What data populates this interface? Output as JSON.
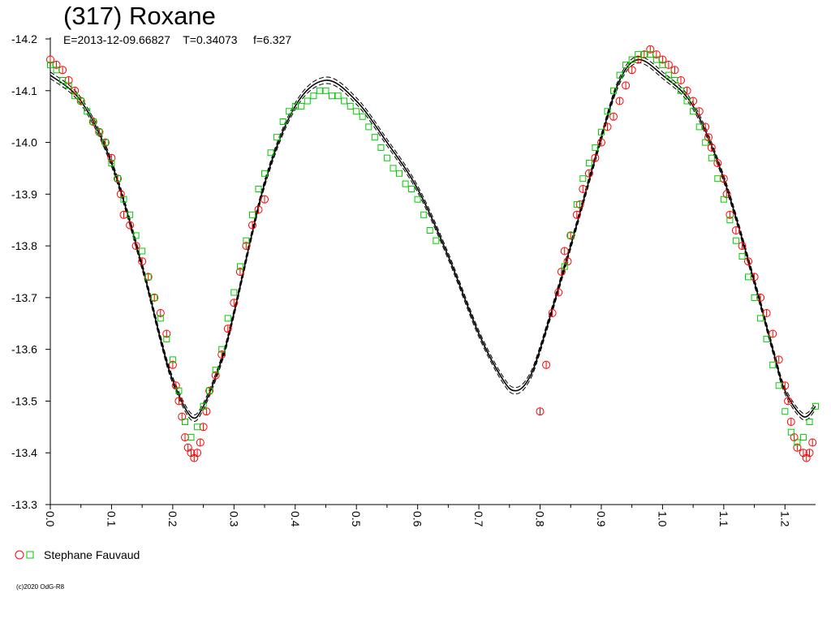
{
  "page": {
    "title": "(317) Roxane",
    "subtitle": "E=2013-12-09.66827    T=0.34073     f=6.327",
    "copyright": "(c)2020 OdG-R8"
  },
  "legend": {
    "label": "Stephane Fauvaud",
    "marker_colors": [
      "#ff0000",
      "#00cc00"
    ]
  },
  "chart_data": {
    "type": "scatter",
    "title": "(317) Roxane",
    "xlim": [
      0.0,
      1.25
    ],
    "ylim": [
      -14.2,
      -13.3
    ],
    "y_inverted": true,
    "x_ticks": [
      "0.0",
      "0.1",
      "0.2",
      "0.3",
      "0.4",
      "0.5",
      "0.6",
      "0.7",
      "0.8",
      "0.9",
      "1.0",
      "1.1",
      "1.2"
    ],
    "y_ticks": [
      "-14.2",
      "-14.1",
      "-14.0",
      "-13.9",
      "-13.8",
      "-13.7",
      "-13.6",
      "-13.5",
      "-13.4",
      "-13.3"
    ],
    "legend_position": "bottom-left",
    "series": [
      {
        "name": "Stephane Fauvaud",
        "marker": "circle",
        "color": "#ff0000",
        "points": [
          [
            0.0,
            -14.16
          ],
          [
            0.01,
            -14.15
          ],
          [
            0.02,
            -14.14
          ],
          [
            0.03,
            -14.12
          ],
          [
            0.04,
            -14.1
          ],
          [
            0.05,
            -14.08
          ],
          [
            0.07,
            -14.04
          ],
          [
            0.08,
            -14.02
          ],
          [
            0.09,
            -14.0
          ],
          [
            0.1,
            -13.97
          ],
          [
            0.11,
            -13.93
          ],
          [
            0.115,
            -13.9
          ],
          [
            0.12,
            -13.86
          ],
          [
            0.13,
            -13.84
          ],
          [
            0.14,
            -13.8
          ],
          [
            0.15,
            -13.77
          ],
          [
            0.16,
            -13.74
          ],
          [
            0.17,
            -13.7
          ],
          [
            0.18,
            -13.67
          ],
          [
            0.19,
            -13.63
          ],
          [
            0.2,
            -13.57
          ],
          [
            0.205,
            -13.53
          ],
          [
            0.21,
            -13.5
          ],
          [
            0.215,
            -13.47
          ],
          [
            0.22,
            -13.43
          ],
          [
            0.225,
            -13.41
          ],
          [
            0.23,
            -13.4
          ],
          [
            0.235,
            -13.39
          ],
          [
            0.24,
            -13.4
          ],
          [
            0.245,
            -13.42
          ],
          [
            0.25,
            -13.45
          ],
          [
            0.255,
            -13.48
          ],
          [
            0.26,
            -13.52
          ],
          [
            0.27,
            -13.55
          ],
          [
            0.28,
            -13.59
          ],
          [
            0.29,
            -13.64
          ],
          [
            0.3,
            -13.69
          ],
          [
            0.31,
            -13.75
          ],
          [
            0.32,
            -13.8
          ],
          [
            0.33,
            -13.84
          ],
          [
            0.34,
            -13.87
          ],
          [
            0.35,
            -13.89
          ],
          [
            0.8,
            -13.48
          ],
          [
            0.81,
            -13.57
          ],
          [
            0.82,
            -13.67
          ],
          [
            0.83,
            -13.71
          ],
          [
            0.835,
            -13.75
          ],
          [
            0.84,
            -13.79
          ],
          [
            0.845,
            -13.77
          ],
          [
            0.85,
            -13.82
          ],
          [
            0.86,
            -13.86
          ],
          [
            0.865,
            -13.88
          ],
          [
            0.87,
            -13.91
          ],
          [
            0.88,
            -13.94
          ],
          [
            0.89,
            -13.97
          ],
          [
            0.9,
            -14.0
          ],
          [
            0.91,
            -14.03
          ],
          [
            0.92,
            -14.05
          ],
          [
            0.93,
            -14.08
          ],
          [
            0.94,
            -14.11
          ],
          [
            0.95,
            -14.14
          ],
          [
            0.96,
            -14.16
          ],
          [
            0.97,
            -14.17
          ],
          [
            0.98,
            -14.18
          ],
          [
            0.99,
            -14.17
          ],
          [
            1.0,
            -14.16
          ],
          [
            1.01,
            -14.15
          ],
          [
            1.02,
            -14.14
          ],
          [
            1.03,
            -14.12
          ],
          [
            1.04,
            -14.1
          ],
          [
            1.05,
            -14.08
          ],
          [
            1.06,
            -14.06
          ],
          [
            1.07,
            -14.03
          ],
          [
            1.075,
            -14.01
          ],
          [
            1.08,
            -13.99
          ],
          [
            1.09,
            -13.96
          ],
          [
            1.1,
            -13.93
          ],
          [
            1.105,
            -13.9
          ],
          [
            1.11,
            -13.86
          ],
          [
            1.12,
            -13.83
          ],
          [
            1.13,
            -13.8
          ],
          [
            1.14,
            -13.77
          ],
          [
            1.15,
            -13.74
          ],
          [
            1.16,
            -13.7
          ],
          [
            1.17,
            -13.67
          ],
          [
            1.18,
            -13.63
          ],
          [
            1.19,
            -13.58
          ],
          [
            1.2,
            -13.53
          ],
          [
            1.205,
            -13.5
          ],
          [
            1.21,
            -13.46
          ],
          [
            1.215,
            -13.43
          ],
          [
            1.22,
            -13.41
          ],
          [
            1.23,
            -13.4
          ],
          [
            1.235,
            -13.39
          ],
          [
            1.24,
            -13.4
          ],
          [
            1.245,
            -13.42
          ]
        ]
      },
      {
        "name": "Stephane Fauvaud",
        "marker": "square",
        "color": "#00cc00",
        "points": [
          [
            0.0,
            -14.15
          ],
          [
            0.01,
            -14.14
          ],
          [
            0.02,
            -14.12
          ],
          [
            0.03,
            -14.11
          ],
          [
            0.04,
            -14.09
          ],
          [
            0.05,
            -14.08
          ],
          [
            0.06,
            -14.06
          ],
          [
            0.07,
            -14.04
          ],
          [
            0.08,
            -14.02
          ],
          [
            0.09,
            -14.0
          ],
          [
            0.1,
            -13.96
          ],
          [
            0.11,
            -13.93
          ],
          [
            0.12,
            -13.89
          ],
          [
            0.13,
            -13.86
          ],
          [
            0.14,
            -13.82
          ],
          [
            0.15,
            -13.79
          ],
          [
            0.16,
            -13.74
          ],
          [
            0.17,
            -13.7
          ],
          [
            0.18,
            -13.66
          ],
          [
            0.19,
            -13.62
          ],
          [
            0.2,
            -13.58
          ],
          [
            0.21,
            -13.52
          ],
          [
            0.22,
            -13.46
          ],
          [
            0.23,
            -13.43
          ],
          [
            0.24,
            -13.45
          ],
          [
            0.25,
            -13.49
          ],
          [
            0.26,
            -13.52
          ],
          [
            0.27,
            -13.56
          ],
          [
            0.28,
            -13.6
          ],
          [
            0.29,
            -13.66
          ],
          [
            0.3,
            -13.71
          ],
          [
            0.31,
            -13.76
          ],
          [
            0.32,
            -13.81
          ],
          [
            0.33,
            -13.86
          ],
          [
            0.34,
            -13.91
          ],
          [
            0.35,
            -13.94
          ],
          [
            0.36,
            -13.98
          ],
          [
            0.37,
            -14.01
          ],
          [
            0.38,
            -14.04
          ],
          [
            0.39,
            -14.06
          ],
          [
            0.4,
            -14.07
          ],
          [
            0.41,
            -14.07
          ],
          [
            0.42,
            -14.08
          ],
          [
            0.43,
            -14.09
          ],
          [
            0.44,
            -14.1
          ],
          [
            0.45,
            -14.1
          ],
          [
            0.46,
            -14.09
          ],
          [
            0.47,
            -14.09
          ],
          [
            0.48,
            -14.08
          ],
          [
            0.49,
            -14.07
          ],
          [
            0.5,
            -14.06
          ],
          [
            0.51,
            -14.05
          ],
          [
            0.52,
            -14.03
          ],
          [
            0.53,
            -14.01
          ],
          [
            0.54,
            -13.99
          ],
          [
            0.55,
            -13.97
          ],
          [
            0.56,
            -13.95
          ],
          [
            0.57,
            -13.94
          ],
          [
            0.58,
            -13.92
          ],
          [
            0.59,
            -13.91
          ],
          [
            0.6,
            -13.89
          ],
          [
            0.61,
            -13.86
          ],
          [
            0.62,
            -13.83
          ],
          [
            0.63,
            -13.81
          ],
          [
            0.84,
            -13.76
          ],
          [
            0.85,
            -13.82
          ],
          [
            0.86,
            -13.88
          ],
          [
            0.87,
            -13.93
          ],
          [
            0.88,
            -13.96
          ],
          [
            0.89,
            -13.99
          ],
          [
            0.9,
            -14.02
          ],
          [
            0.91,
            -14.06
          ],
          [
            0.92,
            -14.1
          ],
          [
            0.93,
            -14.13
          ],
          [
            0.94,
            -14.15
          ],
          [
            0.95,
            -14.16
          ],
          [
            0.96,
            -14.17
          ],
          [
            0.97,
            -14.17
          ],
          [
            0.98,
            -14.17
          ],
          [
            0.99,
            -14.16
          ],
          [
            1.0,
            -14.15
          ],
          [
            1.01,
            -14.13
          ],
          [
            1.02,
            -14.12
          ],
          [
            1.03,
            -14.1
          ],
          [
            1.04,
            -14.08
          ],
          [
            1.05,
            -14.06
          ],
          [
            1.06,
            -14.03
          ],
          [
            1.07,
            -14.0
          ],
          [
            1.08,
            -13.97
          ],
          [
            1.09,
            -13.93
          ],
          [
            1.1,
            -13.89
          ],
          [
            1.11,
            -13.85
          ],
          [
            1.12,
            -13.81
          ],
          [
            1.13,
            -13.78
          ],
          [
            1.14,
            -13.74
          ],
          [
            1.15,
            -13.7
          ],
          [
            1.16,
            -13.66
          ],
          [
            1.17,
            -13.62
          ],
          [
            1.18,
            -13.57
          ],
          [
            1.19,
            -13.53
          ],
          [
            1.2,
            -13.48
          ],
          [
            1.21,
            -13.44
          ],
          [
            1.22,
            -13.42
          ],
          [
            1.23,
            -13.43
          ],
          [
            1.24,
            -13.46
          ],
          [
            1.25,
            -13.49
          ]
        ]
      }
    ],
    "fit_curve": {
      "style": "solid with dashed uncertainty band",
      "color": "#000000",
      "points": [
        [
          0.0,
          -14.13
        ],
        [
          0.05,
          -14.08
        ],
        [
          0.1,
          -13.96
        ],
        [
          0.15,
          -13.76
        ],
        [
          0.18,
          -13.62
        ],
        [
          0.2,
          -13.54
        ],
        [
          0.23,
          -13.47
        ],
        [
          0.25,
          -13.49
        ],
        [
          0.28,
          -13.58
        ],
        [
          0.3,
          -13.67
        ],
        [
          0.35,
          -13.92
        ],
        [
          0.4,
          -14.07
        ],
        [
          0.45,
          -14.12
        ],
        [
          0.5,
          -14.08
        ],
        [
          0.55,
          -14.0
        ],
        [
          0.6,
          -13.91
        ],
        [
          0.65,
          -13.78
        ],
        [
          0.7,
          -13.63
        ],
        [
          0.74,
          -13.54
        ],
        [
          0.76,
          -13.52
        ],
        [
          0.78,
          -13.54
        ],
        [
          0.8,
          -13.6
        ],
        [
          0.85,
          -13.8
        ],
        [
          0.9,
          -14.01
        ],
        [
          0.93,
          -14.12
        ],
        [
          0.96,
          -14.16
        ],
        [
          1.0,
          -14.13
        ],
        [
          1.05,
          -14.07
        ],
        [
          1.1,
          -13.93
        ],
        [
          1.15,
          -13.73
        ],
        [
          1.18,
          -13.6
        ],
        [
          1.2,
          -13.52
        ],
        [
          1.23,
          -13.47
        ],
        [
          1.25,
          -13.49
        ]
      ]
    }
  }
}
